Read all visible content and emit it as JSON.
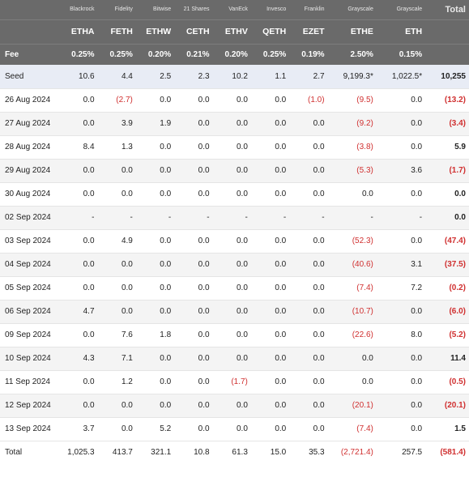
{
  "columns": [
    {
      "key": "label",
      "issuer": "",
      "ticker": "",
      "fee": "Fee",
      "class": "col-label"
    },
    {
      "key": "etha",
      "issuer": "Blackrock",
      "ticker": "ETHA",
      "fee": "0.25%",
      "class": "col-fund"
    },
    {
      "key": "feth",
      "issuer": "Fidelity",
      "ticker": "FETH",
      "fee": "0.25%",
      "class": "col-fund"
    },
    {
      "key": "ethw",
      "issuer": "Bitwise",
      "ticker": "ETHW",
      "fee": "0.20%",
      "class": "col-fund"
    },
    {
      "key": "ceth",
      "issuer": "21 Shares",
      "ticker": "CETH",
      "fee": "0.21%",
      "class": "col-fund"
    },
    {
      "key": "ethv",
      "issuer": "VanEck",
      "ticker": "ETHV",
      "fee": "0.20%",
      "class": "col-fund"
    },
    {
      "key": "qeth",
      "issuer": "Invesco",
      "ticker": "QETH",
      "fee": "0.25%",
      "class": "col-fund"
    },
    {
      "key": "ezet",
      "issuer": "Franklin",
      "ticker": "EZET",
      "fee": "0.19%",
      "class": "col-fund"
    },
    {
      "key": "ethe",
      "issuer": "Grayscale",
      "ticker": "ETHE",
      "fee": "2.50%",
      "class": "col-wide"
    },
    {
      "key": "eth",
      "issuer": "Grayscale",
      "ticker": "ETH",
      "fee": "0.15%",
      "class": "col-wide"
    },
    {
      "key": "total",
      "issuer": "Total",
      "ticker": "",
      "fee": "",
      "class": "col-total"
    }
  ],
  "rows": [
    {
      "kind": "seed",
      "cells": [
        "Seed",
        "10.6",
        "4.4",
        "2.5",
        "2.3",
        "10.2",
        "1.1",
        "2.7",
        "9,199.3*",
        "1,022.5*",
        "10,255"
      ]
    },
    {
      "kind": "data",
      "cells": [
        "26 Aug 2024",
        "0.0",
        "(2.7)",
        "0.0",
        "0.0",
        "0.0",
        "0.0",
        "(1.0)",
        "(9.5)",
        "0.0",
        "(13.2)"
      ]
    },
    {
      "kind": "alt",
      "cells": [
        "27 Aug 2024",
        "0.0",
        "3.9",
        "1.9",
        "0.0",
        "0.0",
        "0.0",
        "0.0",
        "(9.2)",
        "0.0",
        "(3.4)"
      ]
    },
    {
      "kind": "data",
      "cells": [
        "28 Aug 2024",
        "8.4",
        "1.3",
        "0.0",
        "0.0",
        "0.0",
        "0.0",
        "0.0",
        "(3.8)",
        "0.0",
        "5.9"
      ]
    },
    {
      "kind": "alt",
      "cells": [
        "29 Aug 2024",
        "0.0",
        "0.0",
        "0.0",
        "0.0",
        "0.0",
        "0.0",
        "0.0",
        "(5.3)",
        "3.6",
        "(1.7)"
      ]
    },
    {
      "kind": "data",
      "cells": [
        "30 Aug 2024",
        "0.0",
        "0.0",
        "0.0",
        "0.0",
        "0.0",
        "0.0",
        "0.0",
        "0.0",
        "0.0",
        "0.0"
      ]
    },
    {
      "kind": "alt",
      "cells": [
        "02 Sep 2024",
        "-",
        "-",
        "-",
        "-",
        "-",
        "-",
        "-",
        "-",
        "-",
        "0.0"
      ]
    },
    {
      "kind": "data",
      "cells": [
        "03 Sep 2024",
        "0.0",
        "4.9",
        "0.0",
        "0.0",
        "0.0",
        "0.0",
        "0.0",
        "(52.3)",
        "0.0",
        "(47.4)"
      ]
    },
    {
      "kind": "alt",
      "cells": [
        "04 Sep 2024",
        "0.0",
        "0.0",
        "0.0",
        "0.0",
        "0.0",
        "0.0",
        "0.0",
        "(40.6)",
        "3.1",
        "(37.5)"
      ]
    },
    {
      "kind": "data",
      "cells": [
        "05 Sep 2024",
        "0.0",
        "0.0",
        "0.0",
        "0.0",
        "0.0",
        "0.0",
        "0.0",
        "(7.4)",
        "7.2",
        "(0.2)"
      ]
    },
    {
      "kind": "alt",
      "cells": [
        "06 Sep 2024",
        "4.7",
        "0.0",
        "0.0",
        "0.0",
        "0.0",
        "0.0",
        "0.0",
        "(10.7)",
        "0.0",
        "(6.0)"
      ]
    },
    {
      "kind": "data",
      "cells": [
        "09 Sep 2024",
        "0.0",
        "7.6",
        "1.8",
        "0.0",
        "0.0",
        "0.0",
        "0.0",
        "(22.6)",
        "8.0",
        "(5.2)"
      ]
    },
    {
      "kind": "alt",
      "cells": [
        "10 Sep 2024",
        "4.3",
        "7.1",
        "0.0",
        "0.0",
        "0.0",
        "0.0",
        "0.0",
        "0.0",
        "0.0",
        "11.4"
      ]
    },
    {
      "kind": "data",
      "cells": [
        "11 Sep 2024",
        "0.0",
        "1.2",
        "0.0",
        "0.0",
        "(1.7)",
        "0.0",
        "0.0",
        "0.0",
        "0.0",
        "(0.5)"
      ]
    },
    {
      "kind": "alt",
      "cells": [
        "12 Sep 2024",
        "0.0",
        "0.0",
        "0.0",
        "0.0",
        "0.0",
        "0.0",
        "0.0",
        "(20.1)",
        "0.0",
        "(20.1)"
      ]
    },
    {
      "kind": "data",
      "cells": [
        "13 Sep 2024",
        "3.7",
        "0.0",
        "5.2",
        "0.0",
        "0.0",
        "0.0",
        "0.0",
        "(7.4)",
        "0.0",
        "1.5"
      ]
    },
    {
      "kind": "total",
      "cells": [
        "Total",
        "1,025.3",
        "413.7",
        "321.1",
        "10.8",
        "61.3",
        "15.0",
        "35.3",
        "(2,721.4)",
        "257.5",
        "(581.4)"
      ]
    }
  ]
}
